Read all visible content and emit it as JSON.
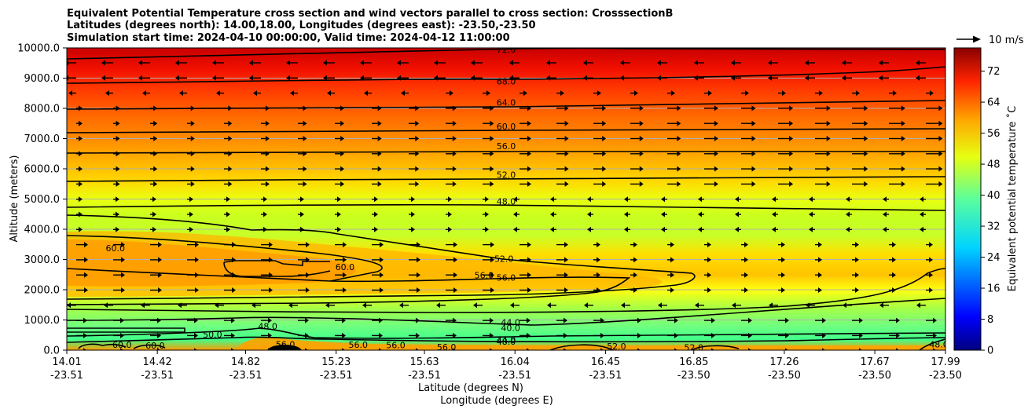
{
  "chart_data": {
    "type": "heatmap",
    "title": [
      "Equivalent Potential Temperature cross section and wind vectors parallel to cross section: CrosssectionB",
      "Latitudes (degrees north): 14.00,18.00, Longitudes (degrees east): -23.50,-23.50",
      "Simulation start time: 2024-04-10 00:00:00, Valid time: 2024-04-12 11:00:00"
    ],
    "ylabel": "Altitude (meters)",
    "xlabel": "Latitude (degrees N)",
    "xlabel2": "Longitude (degrees E)",
    "ylim": [
      0,
      10000
    ],
    "xlim": [
      14.01,
      17.99
    ],
    "yticks": [
      {
        "value": 0,
        "label": "0.0"
      },
      {
        "value": 1000,
        "label": "1000.0"
      },
      {
        "value": 2000,
        "label": "2000.0"
      },
      {
        "value": 3000,
        "label": "3000.0"
      },
      {
        "value": 4000,
        "label": "4000.0"
      },
      {
        "value": 5000,
        "label": "5000.0"
      },
      {
        "value": 6000,
        "label": "6000.0"
      },
      {
        "value": 7000,
        "label": "7000.0"
      },
      {
        "value": 8000,
        "label": "8000.0"
      },
      {
        "value": 9000,
        "label": "9000.0"
      },
      {
        "value": 10000,
        "label": "10000.0"
      }
    ],
    "xticks": [
      {
        "value": 14.01,
        "lat": "14.01",
        "lon": "-23.51"
      },
      {
        "value": 14.42,
        "lat": "14.42",
        "lon": "-23.51"
      },
      {
        "value": 14.82,
        "lat": "14.82",
        "lon": "-23.51"
      },
      {
        "value": 15.23,
        "lat": "15.23",
        "lon": "-23.51"
      },
      {
        "value": 15.63,
        "lat": "15.63",
        "lon": "-23.51"
      },
      {
        "value": 16.04,
        "lat": "16.04",
        "lon": "-23.51"
      },
      {
        "value": 16.45,
        "lat": "16.45",
        "lon": "-23.51"
      },
      {
        "value": 16.85,
        "lat": "16.85",
        "lon": "-23.50"
      },
      {
        "value": 17.26,
        "lat": "17.26",
        "lon": "-23.50"
      },
      {
        "value": 17.67,
        "lat": "17.67",
        "lon": "-23.50"
      },
      {
        "value": 17.99,
        "lat": "17.99",
        "lon": "-23.50"
      }
    ],
    "colorbar": {
      "label": "Equivalent potential temperature ˚C",
      "range": [
        0,
        78
      ],
      "ticks": [
        "0",
        "8",
        "16",
        "24",
        "32",
        "40",
        "48",
        "56",
        "64",
        "72"
      ],
      "tick_values": [
        0,
        8,
        16,
        24,
        32,
        40,
        48,
        56,
        64,
        72
      ]
    },
    "quiver_key": "10 m/s",
    "contour_labels": [
      {
        "text": "72.0",
        "x": 16.0,
        "y": 9950
      },
      {
        "text": "68.0",
        "x": 16.0,
        "y": 8900
      },
      {
        "text": "64.0",
        "x": 16.0,
        "y": 8200
      },
      {
        "text": "60.0",
        "x": 16.0,
        "y": 7400
      },
      {
        "text": "56.0",
        "x": 16.0,
        "y": 6750
      },
      {
        "text": "52.0",
        "x": 16.0,
        "y": 5800
      },
      {
        "text": "48.0",
        "x": 16.0,
        "y": 4920
      },
      {
        "text": "60.0",
        "x": 14.23,
        "y": 3380
      },
      {
        "text": "60.0",
        "x": 15.27,
        "y": 2750
      },
      {
        "text": "52.0",
        "x": 15.99,
        "y": 3030
      },
      {
        "text": "56.0",
        "x": 15.9,
        "y": 2480
      },
      {
        "text": "56.0",
        "x": 16.0,
        "y": 2400
      },
      {
        "text": "44.0",
        "x": 16.02,
        "y": 920
      },
      {
        "text": "40.0",
        "x": 16.02,
        "y": 740
      },
      {
        "text": "44.0",
        "x": 16.0,
        "y": 340
      },
      {
        "text": "48.0",
        "x": 16.0,
        "y": 290
      },
      {
        "text": "60.0",
        "x": 14.26,
        "y": 180
      },
      {
        "text": "60.0",
        "x": 14.41,
        "y": 160
      },
      {
        "text": "50.0",
        "x": 14.67,
        "y": 520
      },
      {
        "text": "48.0",
        "x": 14.92,
        "y": 790
      },
      {
        "text": "56.0",
        "x": 15.0,
        "y": 200
      },
      {
        "text": "56.0",
        "x": 15.33,
        "y": 180
      },
      {
        "text": "56.0",
        "x": 15.5,
        "y": 170
      },
      {
        "text": "56.0",
        "x": 15.73,
        "y": 100
      },
      {
        "text": "52.0",
        "x": 16.5,
        "y": 130
      },
      {
        "text": "52.0",
        "x": 16.85,
        "y": 90
      },
      {
        "text": "48.0",
        "x": 17.96,
        "y": 200
      }
    ]
  }
}
